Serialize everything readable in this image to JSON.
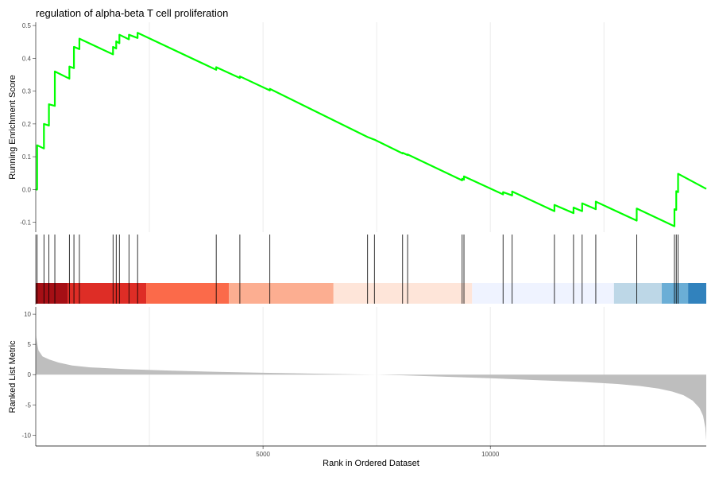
{
  "chart_data": {
    "type": "line",
    "title": "regulation of alpha-beta T cell proliferation",
    "xlabel": "Rank in Ordered Dataset",
    "grid": true,
    "colors": {
      "enrichment_line": "#00ff00",
      "hit_ticks": "#000000",
      "ranked_fill": "#bebebe",
      "grid": "#ebebeb",
      "axis": "#000000"
    },
    "x_domain": [
      0,
      14750
    ],
    "x_ticks": [
      5000,
      10000
    ],
    "enrichment": {
      "ylabel": "Running Enrichment Score",
      "ylim": [
        -0.13,
        0.51
      ],
      "y_ticks": [
        -0.1,
        0.0,
        0.1,
        0.2,
        0.3,
        0.4,
        0.5
      ],
      "y_tick_labels": [
        "-0.1",
        "0.0",
        "0.1",
        "0.2",
        "0.3",
        "0.4",
        "0.5"
      ],
      "x_gridlines": [
        2500,
        5000,
        7500,
        10000,
        12500
      ],
      "points": [
        [
          0,
          0.0
        ],
        [
          30,
          0.0
        ],
        [
          30,
          0.135
        ],
        [
          180,
          0.125
        ],
        [
          180,
          0.2
        ],
        [
          290,
          0.195
        ],
        [
          290,
          0.26
        ],
        [
          420,
          0.255
        ],
        [
          420,
          0.36
        ],
        [
          740,
          0.338
        ],
        [
          740,
          0.375
        ],
        [
          840,
          0.37
        ],
        [
          840,
          0.435
        ],
        [
          960,
          0.428
        ],
        [
          960,
          0.46
        ],
        [
          1700,
          0.412
        ],
        [
          1700,
          0.435
        ],
        [
          1770,
          0.43
        ],
        [
          1770,
          0.452
        ],
        [
          1840,
          0.446
        ],
        [
          1840,
          0.472
        ],
        [
          2050,
          0.458
        ],
        [
          2050,
          0.472
        ],
        [
          2240,
          0.462
        ],
        [
          2240,
          0.478
        ],
        [
          3970,
          0.365
        ],
        [
          3970,
          0.373
        ],
        [
          4490,
          0.34
        ],
        [
          4490,
          0.345
        ],
        [
          5150,
          0.302
        ],
        [
          5150,
          0.307
        ],
        [
          7300,
          0.16
        ],
        [
          7300,
          0.16
        ],
        [
          7450,
          0.152
        ],
        [
          7450,
          0.152
        ],
        [
          8070,
          0.11
        ],
        [
          8070,
          0.112
        ],
        [
          8180,
          0.105
        ],
        [
          8180,
          0.107
        ],
        [
          9380,
          0.028
        ],
        [
          9380,
          0.033
        ],
        [
          9420,
          0.03
        ],
        [
          9420,
          0.04
        ],
        [
          10280,
          -0.015
        ],
        [
          10280,
          -0.008
        ],
        [
          10480,
          -0.018
        ],
        [
          10480,
          -0.006
        ],
        [
          11410,
          -0.066
        ],
        [
          11410,
          -0.047
        ],
        [
          11830,
          -0.072
        ],
        [
          11830,
          -0.055
        ],
        [
          12020,
          -0.066
        ],
        [
          12020,
          -0.042
        ],
        [
          12320,
          -0.06
        ],
        [
          12320,
          -0.037
        ],
        [
          13220,
          -0.095
        ],
        [
          13220,
          -0.058
        ],
        [
          14050,
          -0.112
        ],
        [
          14050,
          -0.06
        ],
        [
          14090,
          -0.062
        ],
        [
          14090,
          -0.005
        ],
        [
          14130,
          -0.008
        ],
        [
          14130,
          0.048
        ],
        [
          14750,
          0.002
        ]
      ]
    },
    "hits": {
      "positions": [
        30,
        180,
        290,
        420,
        740,
        840,
        960,
        1700,
        1770,
        1840,
        2050,
        2240,
        3970,
        4490,
        5150,
        7300,
        7450,
        8070,
        8180,
        9380,
        9420,
        10280,
        10480,
        11410,
        11830,
        12020,
        12320,
        13220,
        14050,
        14090,
        14130
      ],
      "color_bands": [
        {
          "start": 0,
          "end": 700,
          "color": "#a50f15"
        },
        {
          "start": 700,
          "end": 2430,
          "color": "#de2d26"
        },
        {
          "start": 2430,
          "end": 4250,
          "color": "#fb6a4a"
        },
        {
          "start": 4250,
          "end": 6550,
          "color": "#fcae91"
        },
        {
          "start": 6550,
          "end": 9600,
          "color": "#fee5d9"
        },
        {
          "start": 9600,
          "end": 12720,
          "color": "#eff3ff"
        },
        {
          "start": 12720,
          "end": 13770,
          "color": "#bdd7e7"
        },
        {
          "start": 13770,
          "end": 14350,
          "color": "#6baed6"
        },
        {
          "start": 14350,
          "end": 14750,
          "color": "#3182bd"
        }
      ]
    },
    "ranked_list": {
      "ylabel": "Ranked List Metric",
      "ylim": [
        -11.8,
        11.2
      ],
      "y_ticks": [
        -10,
        -5,
        0,
        5,
        10
      ],
      "y_tick_labels": [
        "-10",
        "-5",
        "0",
        "5",
        "10"
      ],
      "curve": [
        [
          0,
          6.5
        ],
        [
          60,
          4.0
        ],
        [
          150,
          3.0
        ],
        [
          300,
          2.5
        ],
        [
          500,
          2.0
        ],
        [
          800,
          1.5
        ],
        [
          1200,
          1.2
        ],
        [
          2000,
          0.9
        ],
        [
          3000,
          0.65
        ],
        [
          4000,
          0.45
        ],
        [
          5000,
          0.3
        ],
        [
          6000,
          0.18
        ],
        [
          7000,
          0.05
        ],
        [
          7500,
          0.0
        ],
        [
          8000,
          -0.1
        ],
        [
          9000,
          -0.35
        ],
        [
          10000,
          -0.6
        ],
        [
          11000,
          -0.9
        ],
        [
          12000,
          -1.2
        ],
        [
          12800,
          -1.55
        ],
        [
          13300,
          -1.9
        ],
        [
          13700,
          -2.3
        ],
        [
          14000,
          -2.8
        ],
        [
          14250,
          -3.4
        ],
        [
          14450,
          -4.3
        ],
        [
          14600,
          -5.5
        ],
        [
          14680,
          -6.8
        ],
        [
          14730,
          -8.8
        ],
        [
          14750,
          -10.9
        ]
      ]
    }
  }
}
